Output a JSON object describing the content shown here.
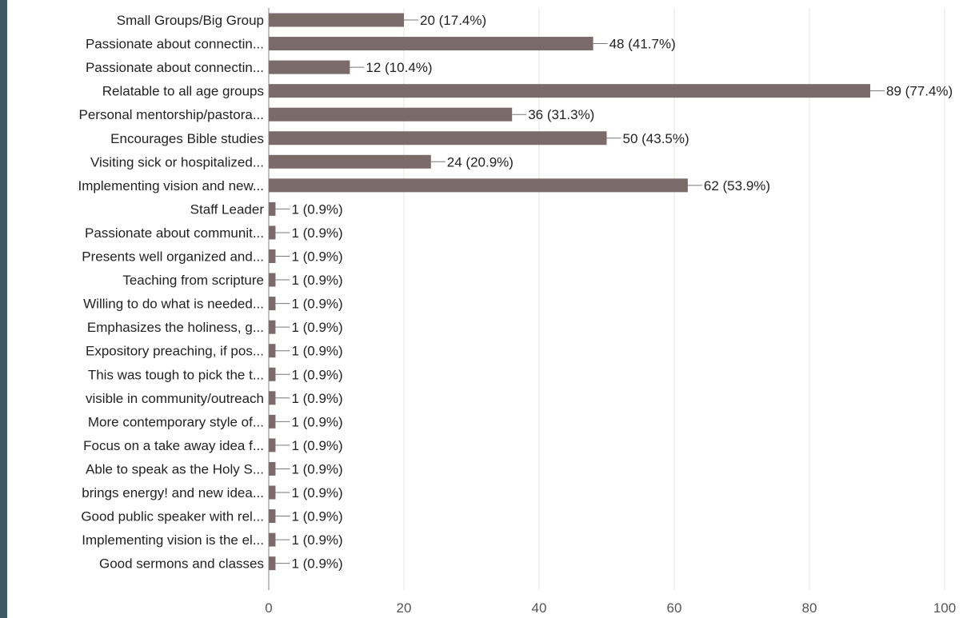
{
  "colors": {
    "bar": "#7a6a6a",
    "left_strip": "#3d5866"
  },
  "chart_data": {
    "type": "bar",
    "orientation": "horizontal",
    "xlim": [
      0,
      100
    ],
    "x_ticks": [
      0,
      20,
      40,
      60,
      80,
      100
    ],
    "grid": true,
    "categories": [
      "Small Groups/Big Group",
      "Passionate about connectin...",
      "Passionate about connectin...",
      "Relatable to all age groups",
      "Personal mentorship/pastora...",
      "Encourages Bible studies",
      "Visiting sick or hospitalized...",
      "Implementing vision and new...",
      "Staff Leader",
      "Passionate about communit...",
      "Presents well organized and...",
      "Teaching from scripture",
      "Willing to do what is needed...",
      "Emphasizes the holiness, g...",
      "Expository preaching, if pos...",
      "This was tough to pick the t...",
      "visible in community/outreach",
      "More contemporary style of...",
      "Focus on a take away idea f...",
      "Able to speak as the Holy S...",
      "brings energy! and new idea...",
      "Good public speaker with rel...",
      "Implementing vision is the el...",
      "Good sermons and classes"
    ],
    "values": [
      20,
      48,
      12,
      89,
      36,
      50,
      24,
      62,
      1,
      1,
      1,
      1,
      1,
      1,
      1,
      1,
      1,
      1,
      1,
      1,
      1,
      1,
      1,
      1
    ],
    "value_labels": [
      "20 (17.4%)",
      "48 (41.7%)",
      "12 (10.4%)",
      "89 (77.4%)",
      "36 (31.3%)",
      "50 (43.5%)",
      "24 (20.9%)",
      "62 (53.9%)",
      "1 (0.9%)",
      "1 (0.9%)",
      "1 (0.9%)",
      "1 (0.9%)",
      "1 (0.9%)",
      "1 (0.9%)",
      "1 (0.9%)",
      "1 (0.9%)",
      "1 (0.9%)",
      "1 (0.9%)",
      "1 (0.9%)",
      "1 (0.9%)",
      "1 (0.9%)",
      "1 (0.9%)",
      "1 (0.9%)",
      "1 (0.9%)"
    ]
  }
}
